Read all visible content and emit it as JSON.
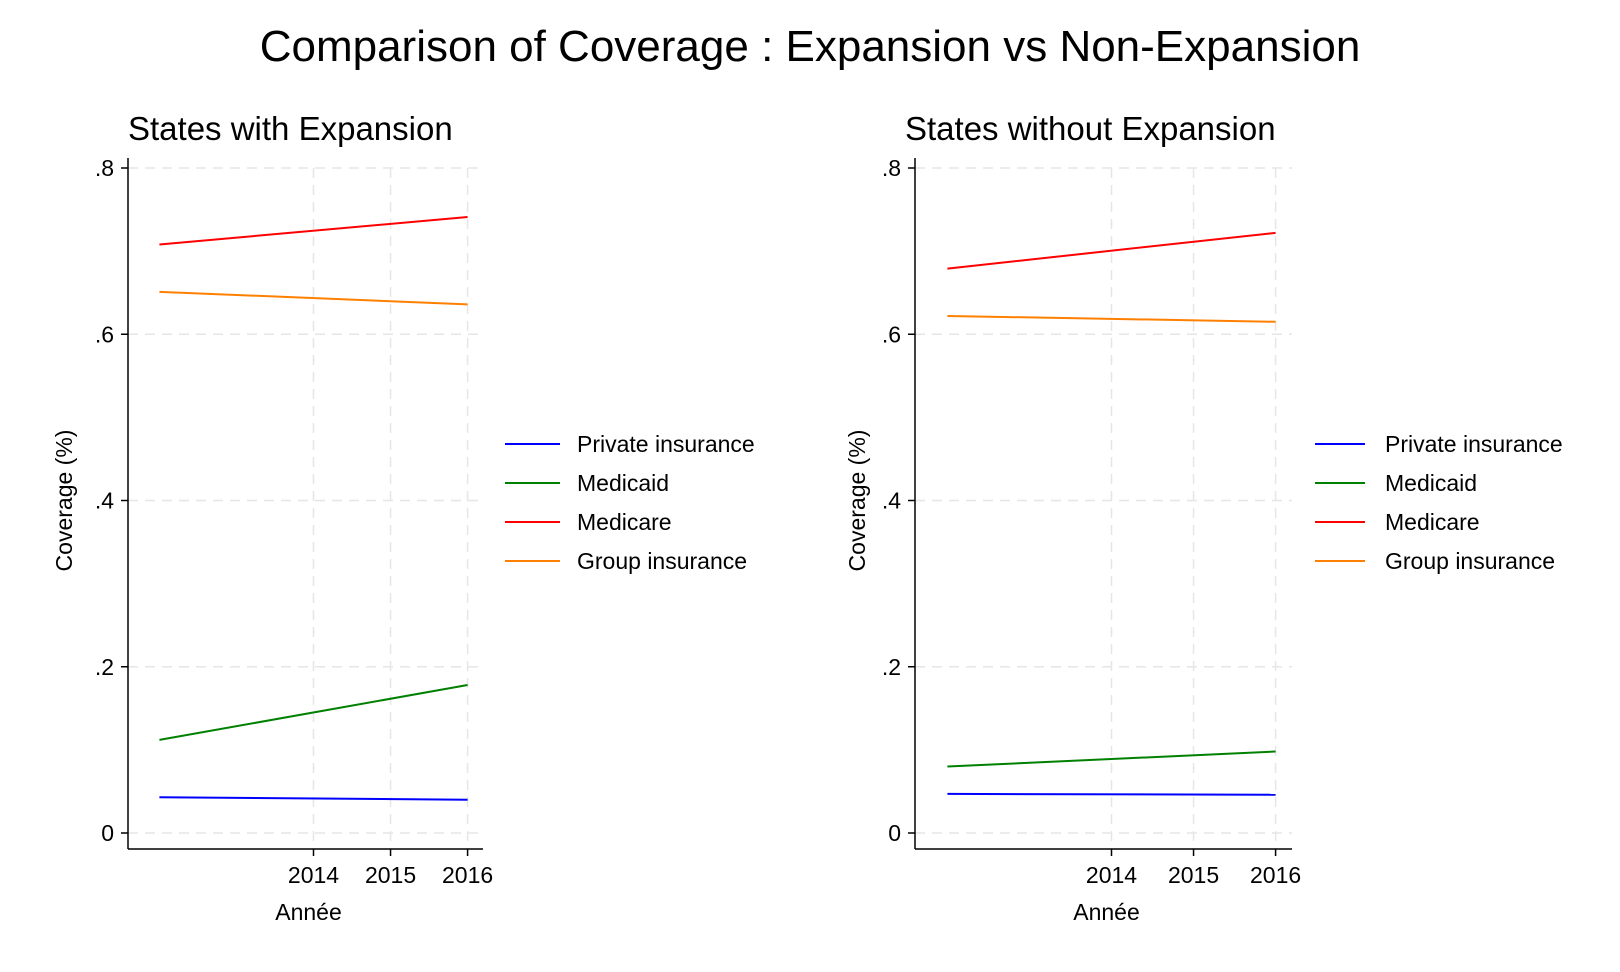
{
  "title": "Comparison of Coverage : Expansion vs Non-Expansion",
  "chart_data": [
    {
      "type": "line",
      "title": "States with Expansion",
      "xlabel": "Année",
      "ylabel": "Coverage (%)",
      "xticks": [
        2014,
        2015,
        2016
      ],
      "yticks": [
        ".8",
        ".6",
        ".4",
        ".2",
        "0"
      ],
      "ytick_values": [
        0.8,
        0.6,
        0.4,
        0.2,
        0
      ],
      "ylim": [
        0,
        0.8
      ],
      "xlim": [
        2011.8,
        2016.2
      ],
      "grid": true,
      "legend_position": "right",
      "series": [
        {
          "name": "Private insurance",
          "color": "#0000ff",
          "x": [
            2012,
            2016
          ],
          "values": [
            0.043,
            0.04
          ]
        },
        {
          "name": "Medicaid",
          "color": "#008000",
          "x": [
            2012,
            2016
          ],
          "values": [
            0.112,
            0.178
          ]
        },
        {
          "name": "Medicare",
          "color": "#ff0000",
          "x": [
            2012,
            2016
          ],
          "values": [
            0.708,
            0.741
          ]
        },
        {
          "name": "Group insurance",
          "color": "#ff8000",
          "x": [
            2012,
            2016
          ],
          "values": [
            0.651,
            0.636
          ]
        }
      ]
    },
    {
      "type": "line",
      "title": "States without Expansion",
      "xlabel": "Année",
      "ylabel": "Coverage (%)",
      "xticks": [
        2014,
        2015,
        2016
      ],
      "yticks": [
        ".8",
        ".6",
        ".4",
        ".2",
        "0"
      ],
      "ytick_values": [
        0.8,
        0.6,
        0.4,
        0.2,
        0
      ],
      "ylim": [
        0,
        0.8
      ],
      "xlim": [
        2011.8,
        2016.2
      ],
      "grid": true,
      "legend_position": "right",
      "series": [
        {
          "name": "Private insurance",
          "color": "#0000ff",
          "x": [
            2012,
            2016
          ],
          "values": [
            0.047,
            0.046
          ]
        },
        {
          "name": "Medicaid",
          "color": "#008000",
          "x": [
            2012,
            2016
          ],
          "values": [
            0.08,
            0.098
          ]
        },
        {
          "name": "Medicare",
          "color": "#ff0000",
          "x": [
            2012,
            2016
          ],
          "values": [
            0.679,
            0.722
          ]
        },
        {
          "name": "Group insurance",
          "color": "#ff8000",
          "x": [
            2012,
            2016
          ],
          "values": [
            0.622,
            0.615
          ]
        }
      ]
    }
  ]
}
